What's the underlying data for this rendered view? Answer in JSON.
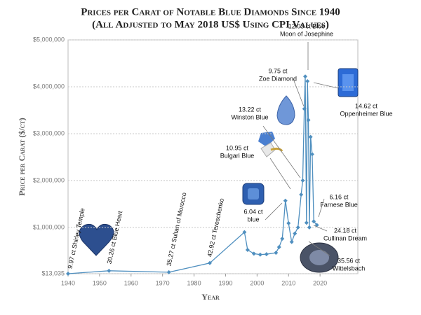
{
  "chart_data": {
    "type": "line",
    "title": "Prices per Carat of Notable Blue Diamonds Since 1940",
    "subtitle": "(All Adjusted to May 2018 US$ Using CPI Values)",
    "x_label": "Year",
    "y_label": "Price per Carat ($/ct)",
    "x": [
      1940,
      1953,
      1972,
      1985,
      1996,
      1997,
      1999,
      2001,
      2003,
      2006,
      2007,
      2008,
      2009,
      2010,
      2011,
      2012,
      2013,
      2014,
      2014.5,
      2015,
      2015.3,
      2015.7,
      2016,
      2016.3,
      2016.6,
      2017,
      2017.5,
      2018,
      2019
    ],
    "values": [
      13035,
      75000,
      45000,
      240000,
      900000,
      520000,
      440000,
      420000,
      430000,
      460000,
      580000,
      760000,
      1570000,
      1090000,
      690000,
      870000,
      1000000,
      1700000,
      2000000,
      3530000,
      4220000,
      1100000,
      4120000,
      3290000,
      1000000,
      2930000,
      2560000,
      1130000,
      1050000
    ],
    "color": "#4f8fbf",
    "xlim": [
      1940,
      2032
    ],
    "xticks": [
      1940,
      1950,
      1960,
      1970,
      1980,
      1990,
      2000,
      2010,
      2020
    ],
    "ylim": [
      13035,
      5000000
    ],
    "yticks": [
      {
        "value": 13035,
        "label": "$13,035"
      },
      {
        "value": 1000000,
        "label": "$1,000,000"
      },
      {
        "value": 2000000,
        "label": "$2,000,000"
      },
      {
        "value": 3000000,
        "label": "$3,000,000"
      },
      {
        "value": 4000000,
        "label": "$4,000,000"
      },
      {
        "value": 5000000,
        "label": "$5,000,000"
      }
    ],
    "grid": true,
    "annotations": [
      [
        "9.97 ct Shirley Temple"
      ],
      [
        "30.26 ct Blue Heart"
      ],
      [
        "35.27 ct Sultan of Morocco"
      ],
      [
        "42.92 ct Tereschenko"
      ],
      [
        "6.04 ct",
        "blue"
      ],
      [
        "10.95 ct",
        "Bulgari Blue"
      ],
      [
        "13.22 ct",
        "Winston Blue"
      ],
      [
        "9.75 ct",
        "Zoe Diamond"
      ],
      [
        "12.03 ct Blue",
        "Moon of Josephine"
      ],
      [
        "14.62 ct",
        "Oppenheimer Blue"
      ],
      [
        "6.16 ct",
        "Farnese Blue"
      ],
      [
        "24.18 ct",
        "Cullinan Dream"
      ],
      [
        "35.56 ct",
        "Wittelsbach"
      ]
    ]
  }
}
